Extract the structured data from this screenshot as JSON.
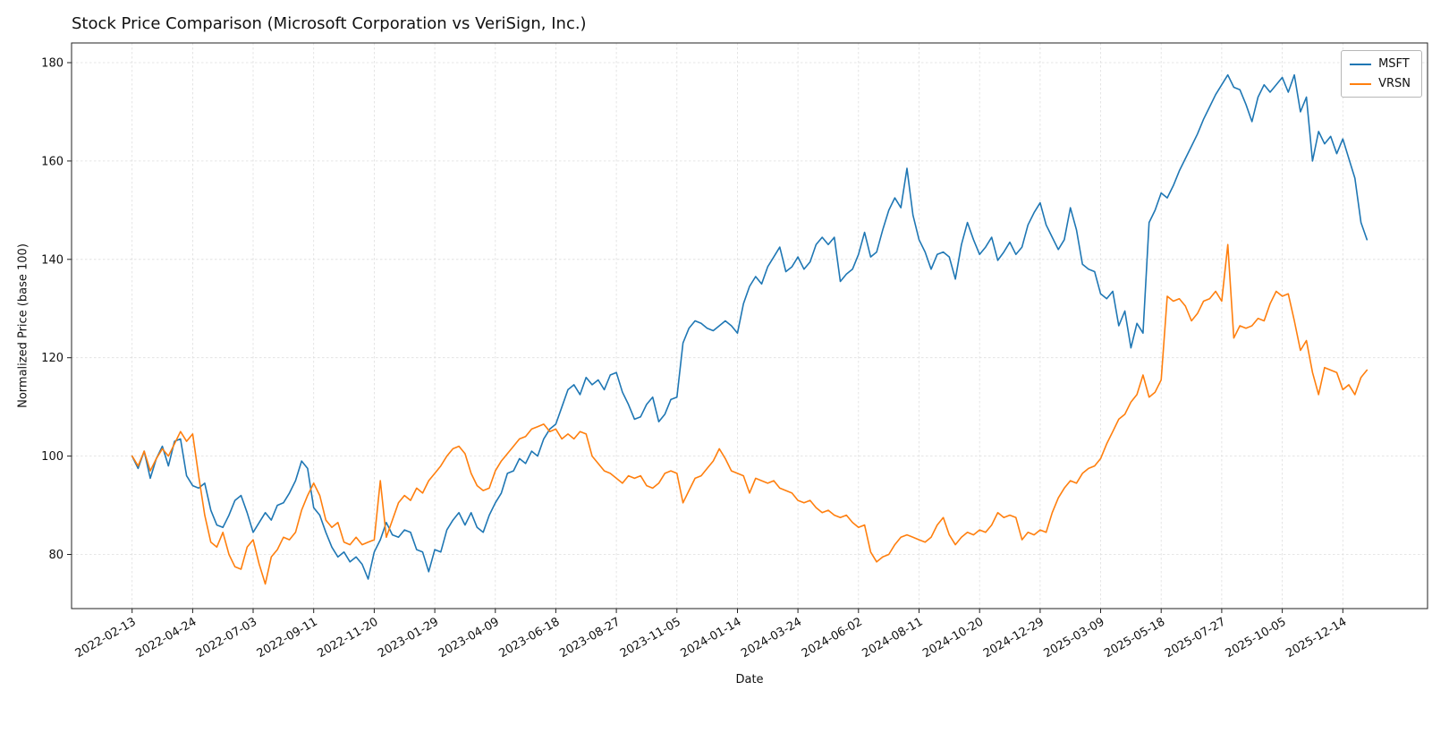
{
  "title": "Stock Price Comparison (Microsoft Corporation vs VeriSign, Inc.)",
  "chart_data": {
    "type": "line",
    "title": "Stock Price Comparison (Microsoft Corporation vs VeriSign, Inc.)",
    "xlabel": "Date",
    "ylabel": "Normalized Price (base 100)",
    "grid": true,
    "legend_position": "upper right",
    "x_description": "weekly data points; index 0 = 2022-02-13, ticks every 10 weeks (70 days)",
    "xlim": [
      -10,
      214
    ],
    "ylim": [
      69,
      184
    ],
    "yticks": [
      80,
      100,
      120,
      140,
      160,
      180
    ],
    "xtick_positions": [
      0,
      10,
      20,
      30,
      40,
      50,
      60,
      70,
      80,
      90,
      100,
      110,
      120,
      130,
      140,
      150,
      160,
      170,
      180,
      190,
      200
    ],
    "xtick_labels": [
      "2022-02-13",
      "2022-04-24",
      "2022-07-03",
      "2022-09-11",
      "2022-11-20",
      "2023-01-29",
      "2023-04-09",
      "2023-06-18",
      "2023-08-27",
      "2023-11-05",
      "2024-01-14",
      "2024-03-24",
      "2024-06-02",
      "2024-08-11",
      "2024-10-20",
      "2024-12-29",
      "2025-03-09",
      "2025-05-18",
      "2025-07-27",
      "2025-10-05",
      "2025-12-14"
    ],
    "series": [
      {
        "name": "MSFT",
        "color": "#1f77b4",
        "values": [
          100.0,
          97.5,
          101.0,
          95.5,
          99.5,
          102.0,
          98.0,
          103.0,
          103.5,
          96.0,
          94.0,
          93.5,
          94.5,
          89.0,
          86.0,
          85.5,
          88.0,
          91.0,
          92.0,
          88.5,
          84.5,
          86.5,
          88.5,
          87.0,
          90.0,
          90.5,
          92.5,
          95.0,
          99.0,
          97.5,
          89.5,
          88.0,
          84.5,
          81.5,
          79.5,
          80.5,
          78.5,
          79.5,
          78.0,
          75.0,
          80.5,
          83.0,
          86.5,
          84.0,
          83.5,
          85.0,
          84.5,
          81.0,
          80.5,
          76.5,
          81.0,
          80.5,
          85.0,
          87.0,
          88.5,
          86.0,
          88.5,
          85.5,
          84.5,
          88.0,
          90.5,
          92.5,
          96.5,
          97.0,
          99.5,
          98.5,
          101.0,
          100.0,
          103.5,
          105.5,
          106.5,
          110.0,
          113.5,
          114.5,
          112.5,
          116.0,
          114.5,
          115.5,
          113.5,
          116.5,
          117.0,
          113.0,
          110.5,
          107.5,
          108.0,
          110.5,
          112.0,
          107.0,
          108.5,
          111.5,
          112.0,
          123.0,
          126.0,
          127.5,
          127.0,
          126.0,
          125.5,
          126.5,
          127.5,
          126.5,
          125.0,
          131.0,
          134.5,
          136.5,
          135.0,
          138.5,
          140.5,
          142.5,
          137.5,
          138.5,
          140.5,
          138.0,
          139.5,
          143.0,
          144.5,
          143.0,
          144.5,
          135.5,
          137.0,
          138.0,
          141.0,
          145.5,
          140.5,
          141.5,
          146.0,
          150.0,
          152.5,
          150.5,
          158.5,
          149.0,
          144.0,
          141.5,
          138.0,
          141.0,
          141.5,
          140.5,
          136.0,
          143.0,
          147.5,
          144.0,
          141.0,
          142.5,
          144.5,
          139.8,
          141.5,
          143.5,
          141.0,
          142.5,
          147.0,
          149.5,
          151.5,
          147.0,
          144.5,
          142.0,
          144.0,
          150.5,
          146.0,
          139.0,
          138.0,
          137.5,
          133.0,
          132.0,
          133.5,
          126.5,
          129.5,
          122.0,
          127.0,
          125.0,
          147.5,
          150.0,
          153.5,
          152.5,
          155.0,
          158.0,
          160.5,
          163.0,
          165.5,
          168.5,
          171.0,
          173.5,
          175.5,
          177.5,
          175.0,
          174.5,
          171.5,
          168.0,
          173.0,
          175.5,
          174.0,
          175.5,
          177.0,
          174.0,
          177.5,
          170.0,
          173.0,
          160.0,
          166.0,
          163.5,
          165.0,
          161.5,
          164.5,
          160.5,
          156.5,
          147.5,
          144.0
        ]
      },
      {
        "name": "VRSN",
        "color": "#ff7f0e",
        "values": [
          100.0,
          98.0,
          101.0,
          97.0,
          99.5,
          101.5,
          100.0,
          102.5,
          105.0,
          103.0,
          104.5,
          96.0,
          88.0,
          82.5,
          81.5,
          84.5,
          80.0,
          77.5,
          77.0,
          81.5,
          83.0,
          78.0,
          74.0,
          79.5,
          81.0,
          83.5,
          83.0,
          84.5,
          89.0,
          92.0,
          94.5,
          92.0,
          87.0,
          85.5,
          86.5,
          82.5,
          82.0,
          83.5,
          82.0,
          82.5,
          83.0,
          95.0,
          83.5,
          87.0,
          90.5,
          92.0,
          91.0,
          93.5,
          92.5,
          95.0,
          96.5,
          98.0,
          100.0,
          101.5,
          102.0,
          100.5,
          96.5,
          94.0,
          93.0,
          93.5,
          97.0,
          99.0,
          100.5,
          102.0,
          103.5,
          104.0,
          105.5,
          106.0,
          106.5,
          105.0,
          105.5,
          103.5,
          104.5,
          103.5,
          105.0,
          104.5,
          100.0,
          98.5,
          97.0,
          96.5,
          95.5,
          94.5,
          96.0,
          95.5,
          96.0,
          94.0,
          93.5,
          94.5,
          96.5,
          97.0,
          96.5,
          90.5,
          93.0,
          95.5,
          96.0,
          97.5,
          99.0,
          101.5,
          99.5,
          97.0,
          96.5,
          96.0,
          92.5,
          95.5,
          95.0,
          94.5,
          95.0,
          93.5,
          93.0,
          92.5,
          91.0,
          90.5,
          91.0,
          89.5,
          88.5,
          89.0,
          88.0,
          87.5,
          88.0,
          86.5,
          85.5,
          86.0,
          80.5,
          78.5,
          79.5,
          80.0,
          82.0,
          83.5,
          84.0,
          83.5,
          83.0,
          82.5,
          83.5,
          86.0,
          87.5,
          84.0,
          82.0,
          83.5,
          84.5,
          84.0,
          85.0,
          84.5,
          86.0,
          88.5,
          87.5,
          88.0,
          87.5,
          83.0,
          84.5,
          84.0,
          85.0,
          84.5,
          88.5,
          91.5,
          93.5,
          95.0,
          94.5,
          96.5,
          97.5,
          98.0,
          99.5,
          102.5,
          105.0,
          107.5,
          108.5,
          111.0,
          112.5,
          116.5,
          112.0,
          113.0,
          115.5,
          132.5,
          131.5,
          132.0,
          130.5,
          127.5,
          129.0,
          131.5,
          132.0,
          133.5,
          131.5,
          143.0,
          124.0,
          126.5,
          126.0,
          126.5,
          128.0,
          127.5,
          131.0,
          133.5,
          132.5,
          133.0,
          127.5,
          121.5,
          123.5,
          117.0,
          112.5,
          118.0,
          117.5,
          117.0,
          113.5,
          114.5,
          112.5,
          116.0,
          117.5
        ]
      }
    ]
  }
}
